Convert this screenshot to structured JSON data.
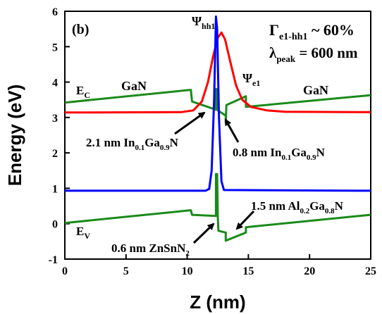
{
  "chart_data": {
    "type": "line",
    "panel_label": "(b)",
    "xlabel": "Z (nm)",
    "ylabel": "Energy (eV)",
    "xlim": [
      0,
      25
    ],
    "ylim": [
      -1,
      6
    ],
    "xticks": [
      "0",
      "5",
      "10",
      "15",
      "20",
      "25"
    ],
    "yticks": [
      "-1",
      "0",
      "1",
      "2",
      "3",
      "4",
      "5",
      "6"
    ],
    "series": [
      {
        "name": "E_C",
        "color": "#1a8a1a",
        "points": [
          [
            0,
            3.42
          ],
          [
            10.3,
            3.78
          ],
          [
            10.4,
            3.45
          ],
          [
            12.35,
            3.22
          ],
          [
            12.35,
            3.8
          ],
          [
            12.45,
            3.8
          ],
          [
            12.5,
            3.2
          ],
          [
            13.15,
            3.05
          ],
          [
            13.15,
            2.85
          ],
          [
            13.2,
            3.35
          ],
          [
            14.8,
            3.6
          ],
          [
            14.8,
            3.3
          ],
          [
            25,
            3.63
          ]
        ]
      },
      {
        "name": "E_V",
        "color": "#1a8a1a",
        "points": [
          [
            0,
            0.02
          ],
          [
            10.3,
            0.38
          ],
          [
            10.4,
            0.25
          ],
          [
            12.35,
            0.22
          ],
          [
            12.35,
            1.4
          ],
          [
            12.45,
            1.4
          ],
          [
            12.5,
            0.2
          ],
          [
            12.55,
            -0.2
          ],
          [
            13.15,
            -0.25
          ],
          [
            13.15,
            -0.48
          ],
          [
            14.8,
            -0.25
          ],
          [
            14.8,
            -0.1
          ],
          [
            25,
            0.25
          ]
        ]
      },
      {
        "name": "Ψ_hh1",
        "color": "#0000ff",
        "points": [
          [
            0,
            0.93
          ],
          [
            11.5,
            0.93
          ],
          [
            11.8,
            0.98
          ],
          [
            12.0,
            1.5
          ],
          [
            12.2,
            3.5
          ],
          [
            12.35,
            5.85
          ],
          [
            12.45,
            5.5
          ],
          [
            12.6,
            3.0
          ],
          [
            12.8,
            1.2
          ],
          [
            13.0,
            0.95
          ],
          [
            25,
            0.93
          ]
        ]
      },
      {
        "name": "Ψ_e1",
        "color": "#ff0000",
        "points": [
          [
            0,
            3.14
          ],
          [
            9.5,
            3.15
          ],
          [
            10.5,
            3.2
          ],
          [
            11.2,
            3.45
          ],
          [
            11.7,
            4.0
          ],
          [
            12.1,
            4.7
          ],
          [
            12.5,
            5.25
          ],
          [
            12.8,
            5.4
          ],
          [
            13.1,
            5.2
          ],
          [
            13.5,
            4.6
          ],
          [
            14.0,
            3.9
          ],
          [
            14.5,
            3.5
          ],
          [
            15.2,
            3.3
          ],
          [
            16.5,
            3.2
          ],
          [
            18,
            3.16
          ],
          [
            25,
            3.15
          ]
        ]
      }
    ],
    "annotations": {
      "gamma_main": "Γ",
      "gamma_sub": "e1-hh1",
      "gamma_rest": " ~ 60%",
      "lambda_main": "λ",
      "lambda_sub": "peak",
      "lambda_rest": " = 600 nm",
      "lambda_color": "#ff8c00",
      "psi_main": "Ψ",
      "psi_hh1_sub": "hh1",
      "psi_e1_sub": "e1",
      "ec_main": "E",
      "ec_sub": "C",
      "ev_main": "E",
      "ev_sub": "V",
      "gan_left": "GaN",
      "gan_right": "GaN",
      "ingan_21": {
        "a": "2.1 nm In",
        "b": "0.1",
        "c": "Ga",
        "d": "0.9",
        "e": "N"
      },
      "ingan_08": {
        "a": "0.8 nm In",
        "b": "0.1",
        "c": "Ga",
        "d": "0.9",
        "e": "N"
      },
      "algan": {
        "a": "1.5 nm Al",
        "b": "0.2",
        "c": "Ga",
        "d": "0.8",
        "e": "N"
      },
      "znsn": {
        "a": "0.6 nm ZnSnN",
        "b": "2"
      }
    }
  }
}
